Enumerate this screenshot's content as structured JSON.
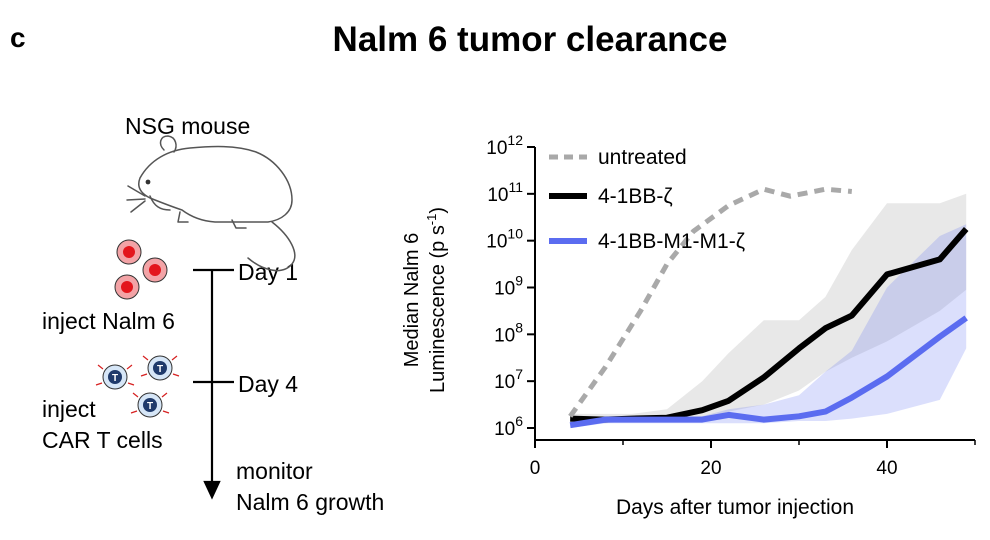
{
  "figure": {
    "panel_letter": "c",
    "title": "Nalm 6 tumor clearance"
  },
  "schematic": {
    "mouse_label": "NSG mouse",
    "day1_label": "Day 1",
    "day4_label": "Day 4",
    "inject_nalm6": "inject Nalm 6",
    "inject_car_line1": "inject",
    "inject_car_line2": "CAR T  cells",
    "monitor_line1": "monitor",
    "monitor_line2": "Nalm 6 growth",
    "tcell_letter": "T",
    "icons": [
      "mouse-icon",
      "tumor-cell-icon",
      "car-t-cell-icon"
    ]
  },
  "chart_data": {
    "type": "line",
    "xlabel": "Days after tumor injection",
    "ylabel_line1": "Median Nalm 6",
    "ylabel_line2": "Luminescence (p s",
    "ylabel_sup": "-1",
    "ylabel_close": ")",
    "x_ticks": [
      "0",
      "20",
      "40"
    ],
    "x_tick_values": [
      0,
      20,
      40
    ],
    "xlim": [
      0,
      50
    ],
    "y_scale": "log",
    "y_ticks": [
      {
        "base": "10",
        "exp": "6",
        "value": 6
      },
      {
        "base": "10",
        "exp": "7",
        "value": 7
      },
      {
        "base": "10",
        "exp": "8",
        "value": 8
      },
      {
        "base": "10",
        "exp": "9",
        "value": 9
      },
      {
        "base": "10",
        "exp": "10",
        "value": 10
      },
      {
        "base": "10",
        "exp": "11",
        "value": 11
      },
      {
        "base": "10",
        "exp": "12",
        "value": 12
      }
    ],
    "ylim_log10": [
      5.8,
      12
    ],
    "legend_position": "top-left",
    "series": [
      {
        "name": "untreated",
        "color": "#a9a9a9",
        "style": "dashed",
        "x": [
          4,
          8,
          12,
          15,
          18,
          22,
          26,
          29,
          33,
          36
        ],
        "log10_y": [
          6.25,
          7.3,
          8.5,
          9.5,
          10.2,
          10.75,
          11.1,
          10.95,
          11.1,
          11.05
        ],
        "band_low": [],
        "band_high": []
      },
      {
        "name": "4-1BB-ζ",
        "color": "#000000",
        "style": "solid",
        "x": [
          4,
          8,
          11,
          15,
          19,
          22,
          26,
          30,
          33,
          36,
          40,
          46,
          49
        ],
        "log10_y": [
          6.2,
          6.18,
          6.2,
          6.22,
          6.38,
          6.58,
          7.08,
          7.7,
          8.13,
          8.4,
          9.28,
          9.6,
          10.25
        ],
        "band_low": [
          6.1,
          6.1,
          6.15,
          6.15,
          6.2,
          6.35,
          6.5,
          6.8,
          7.2,
          7.5,
          7.85,
          8.5,
          8.95
        ],
        "band_high": [
          6.3,
          6.3,
          6.3,
          6.4,
          7.0,
          7.6,
          8.3,
          8.3,
          8.8,
          9.8,
          10.8,
          10.8,
          11.0
        ]
      },
      {
        "name": "4-1BB-M1-M1-ζ",
        "color": "#5b6cf0",
        "style": "solid",
        "x": [
          4,
          8,
          11,
          15,
          19,
          22,
          26,
          30,
          33,
          36,
          40,
          46,
          49
        ],
        "log10_y": [
          6.06,
          6.18,
          6.18,
          6.18,
          6.18,
          6.28,
          6.18,
          6.25,
          6.35,
          6.65,
          7.1,
          7.95,
          8.35
        ],
        "band_low": [
          6.0,
          6.1,
          6.1,
          6.1,
          6.1,
          6.1,
          6.1,
          6.15,
          6.15,
          6.2,
          6.3,
          6.6,
          7.7
        ],
        "band_high": [
          6.15,
          6.25,
          6.25,
          6.25,
          6.25,
          6.4,
          6.5,
          6.7,
          7.2,
          7.65,
          9.0,
          10.1,
          10.35
        ]
      }
    ]
  }
}
